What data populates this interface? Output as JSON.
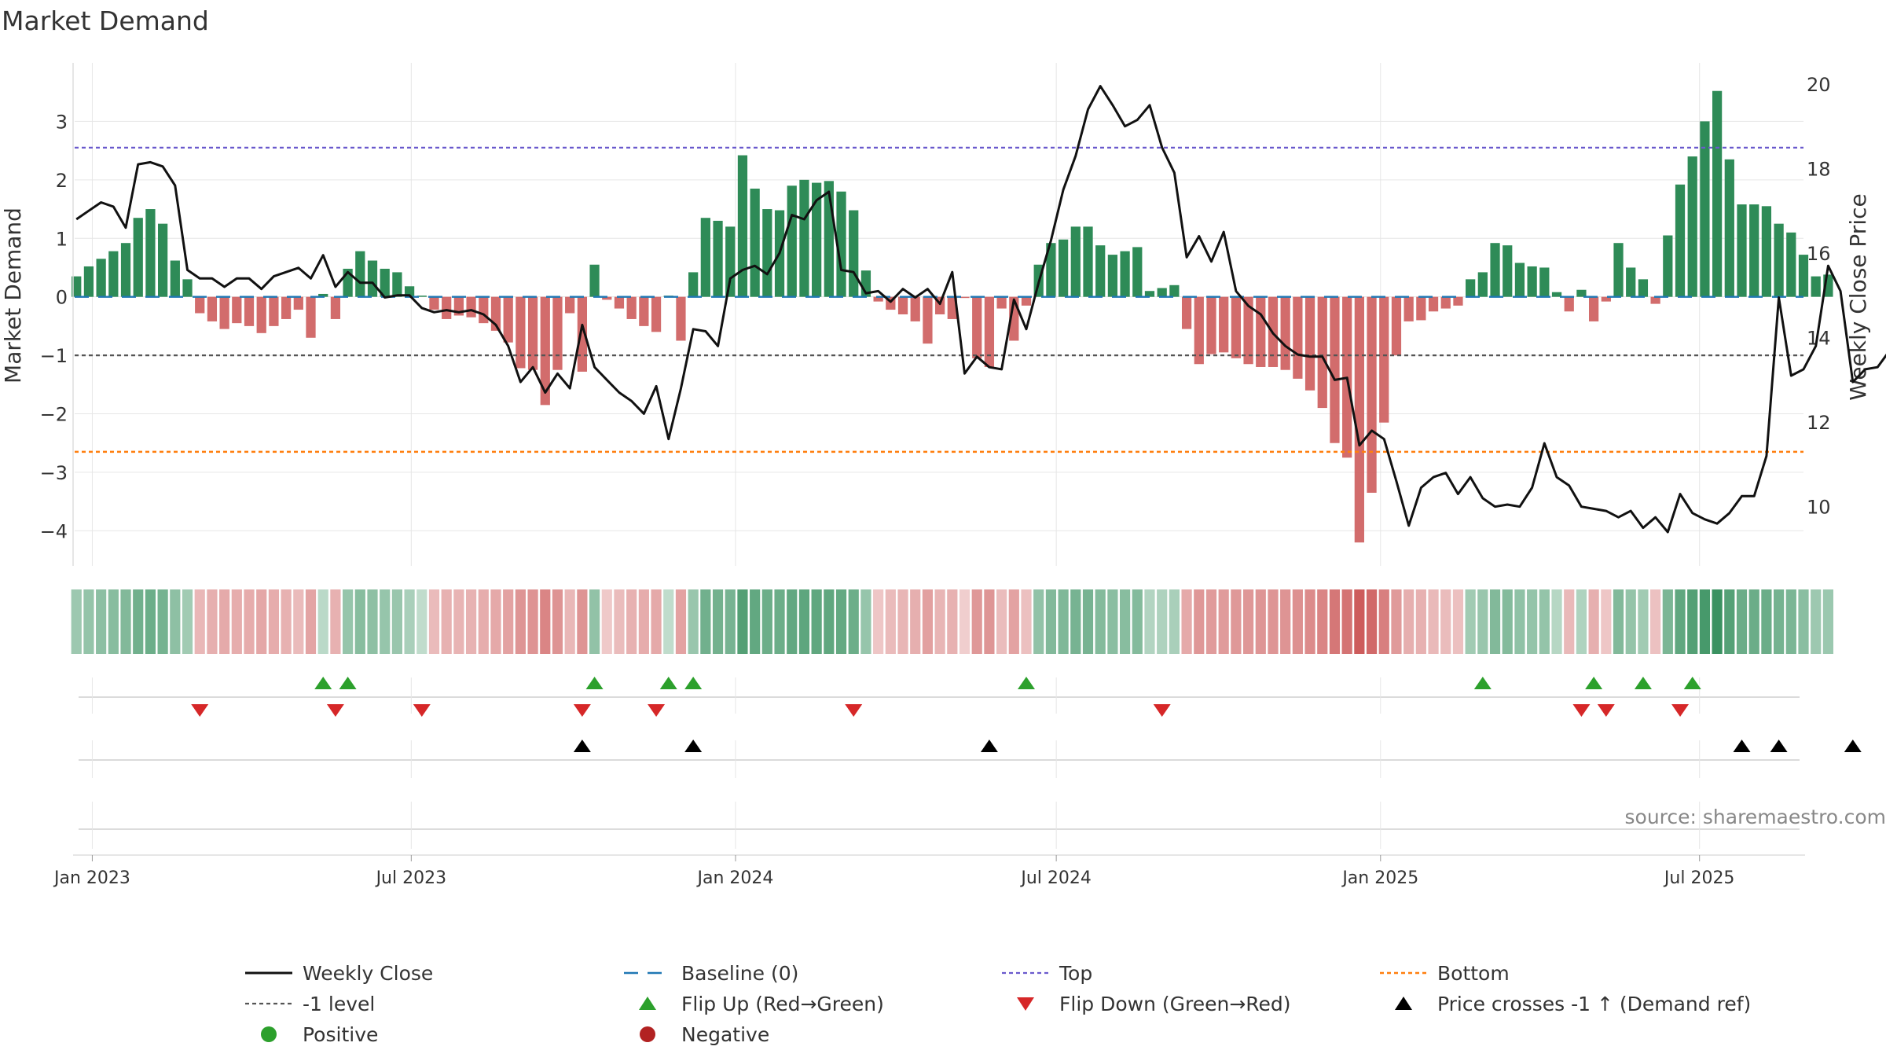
{
  "chart_data": {
    "type": "bar+line",
    "title": "Market Demand",
    "ylabel_left": "Market Demand",
    "ylabel_right": "Weekly Close Price",
    "ylim_left": [
      -4.6,
      4.0
    ],
    "yticks_left": [
      3,
      2,
      1,
      0,
      -1,
      -2,
      -3,
      -4
    ],
    "ytick_labels_left": [
      "3",
      "2",
      "1",
      "0",
      "−1",
      "−2",
      "−3",
      "−4"
    ],
    "ylim_right": [
      8.6,
      20.5
    ],
    "yticks_right": [
      20,
      18,
      16,
      14,
      12,
      10
    ],
    "xaxis_start": "2022-12-22",
    "xaxis_end": "2025-08-29",
    "xticks": [
      {
        "date": "2023-01-01",
        "label": "Jan 2023"
      },
      {
        "date": "2023-07-01",
        "label": "Jul 2023"
      },
      {
        "date": "2024-01-01",
        "label": "Jan 2024"
      },
      {
        "date": "2024-07-01",
        "label": "Jul 2024"
      },
      {
        "date": "2025-01-01",
        "label": "Jan 2025"
      },
      {
        "date": "2025-07-01",
        "label": "Jul 2025"
      }
    ],
    "start_date": "2022-12-23",
    "week_days": 7,
    "demand": [
      0.35,
      0.52,
      0.65,
      0.78,
      0.92,
      1.35,
      1.5,
      1.25,
      0.62,
      0.3,
      -0.28,
      -0.42,
      -0.55,
      -0.45,
      -0.5,
      -0.62,
      -0.5,
      -0.38,
      -0.22,
      -0.7,
      0.05,
      -0.38,
      0.48,
      0.78,
      0.62,
      0.48,
      0.42,
      0.18,
      0.02,
      -0.22,
      -0.38,
      -0.32,
      -0.35,
      -0.45,
      -0.58,
      -0.78,
      -1.22,
      -1.25,
      -1.85,
      -1.25,
      -0.28,
      -1.28,
      0.55,
      -0.05,
      -0.2,
      -0.38,
      -0.5,
      -0.6,
      0.02,
      -0.75,
      0.42,
      1.35,
      1.3,
      1.2,
      2.42,
      1.85,
      1.5,
      1.48,
      1.9,
      2.0,
      1.95,
      1.98,
      1.8,
      1.48,
      0.45,
      -0.08,
      -0.22,
      -0.3,
      -0.42,
      -0.8,
      -0.3,
      -0.38,
      -0.02,
      -1.05,
      -1.2,
      -0.2,
      -0.75,
      -0.15,
      0.55,
      0.92,
      0.98,
      1.2,
      1.2,
      0.88,
      0.72,
      0.78,
      0.85,
      0.1,
      0.15,
      0.2,
      -0.55,
      -1.15,
      -0.98,
      -0.95,
      -1.05,
      -1.15,
      -1.2,
      -1.2,
      -1.25,
      -1.4,
      -1.6,
      -1.9,
      -2.5,
      -2.75,
      -4.2,
      -3.35,
      -2.15,
      -1.0,
      -0.42,
      -0.4,
      -0.25,
      -0.2,
      -0.15,
      0.3,
      0.42,
      0.92,
      0.88,
      0.58,
      0.52,
      0.5,
      0.08,
      -0.25,
      0.12,
      -0.42,
      -0.08,
      0.92,
      0.5,
      0.3,
      -0.12,
      1.05,
      1.92,
      2.4,
      3.0,
      3.52,
      2.35,
      1.58,
      1.58,
      1.55,
      1.25,
      1.1,
      0.72,
      0.35,
      0.38
    ],
    "close": [
      16.8,
      17.0,
      17.2,
      17.1,
      16.6,
      18.1,
      18.15,
      18.05,
      17.6,
      15.6,
      15.4,
      15.4,
      15.2,
      15.4,
      15.4,
      15.15,
      15.45,
      15.55,
      15.65,
      15.4,
      15.95,
      15.2,
      15.55,
      15.3,
      15.3,
      14.95,
      15.0,
      15.0,
      14.7,
      14.6,
      14.65,
      14.6,
      14.65,
      14.55,
      14.3,
      13.8,
      12.95,
      13.3,
      12.7,
      13.15,
      12.8,
      14.3,
      13.3,
      13.0,
      12.7,
      12.5,
      12.2,
      12.85,
      11.6,
      12.8,
      14.2,
      14.15,
      13.8,
      15.4,
      15.6,
      15.7,
      15.5,
      16.0,
      16.9,
      16.8,
      17.25,
      17.45,
      15.6,
      15.55,
      15.05,
      15.1,
      14.85,
      15.15,
      14.95,
      15.15,
      14.8,
      15.55,
      13.15,
      13.55,
      13.3,
      13.25,
      14.9,
      14.2,
      15.3,
      16.3,
      17.5,
      18.3,
      19.4,
      19.95,
      19.5,
      19.0,
      19.15,
      19.5,
      18.5,
      17.9,
      15.9,
      16.4,
      15.8,
      16.5,
      15.1,
      14.75,
      14.55,
      14.1,
      13.8,
      13.6,
      13.55,
      13.55,
      13.0,
      13.05,
      11.45,
      11.8,
      11.6,
      10.6,
      9.55,
      10.45,
      10.7,
      10.8,
      10.3,
      10.7,
      10.2,
      10.0,
      10.05,
      10.0,
      10.45,
      11.5,
      10.7,
      10.5,
      10.0,
      9.95,
      9.9,
      9.75,
      9.9,
      9.5,
      9.75,
      9.4,
      10.3,
      9.85,
      9.7,
      9.6,
      9.85,
      10.25,
      10.25,
      11.2,
      14.95,
      13.1,
      13.25,
      13.8,
      15.7,
      15.1,
      12.95,
      13.25,
      13.3,
      13.7
    ],
    "flip_up_weeks": [
      20,
      22,
      42,
      48,
      50,
      77,
      114,
      123,
      127,
      131
    ],
    "flip_down_weeks": [
      10,
      21,
      28,
      41,
      47,
      63,
      88,
      122,
      124,
      130
    ],
    "price_cross_weeks": [
      41,
      50,
      74,
      135,
      138,
      144
    ],
    "lines": {
      "baseline": 0,
      "top": 2.55,
      "level": -1,
      "bottom": -2.65
    },
    "source": "source: sharemaestro.com",
    "legend": [
      {
        "key": "close",
        "label": "Weekly Close"
      },
      {
        "key": "baseline",
        "label": "Baseline (0)"
      },
      {
        "key": "top",
        "label": "Top"
      },
      {
        "key": "bottom",
        "label": "Bottom"
      },
      {
        "key": "level",
        "label": "-1 level"
      },
      {
        "key": "flip_up",
        "label": "Flip Up (Red→Green)"
      },
      {
        "key": "flip_down",
        "label": "Flip Down (Green→Red)"
      },
      {
        "key": "cross",
        "label": "Price crosses -1 ↑ (Demand ref)"
      },
      {
        "key": "positive",
        "label": "Positive"
      },
      {
        "key": "negative",
        "label": "Negative"
      }
    ]
  },
  "colors": {
    "positive": "#2e8b57",
    "negative": "#cd5c5c",
    "close": "#111111",
    "baseline": "#1f77b4",
    "top": "#6a5acd",
    "level": "#555555",
    "bottom": "#ff7f0e",
    "flip_up": "#2ca02c",
    "flip_down": "#d62728",
    "cross": "#000000",
    "positive_dot": "#2ca02c",
    "negative_dot": "#b22222",
    "grid": "#e6e6e6",
    "text": "#333333"
  }
}
